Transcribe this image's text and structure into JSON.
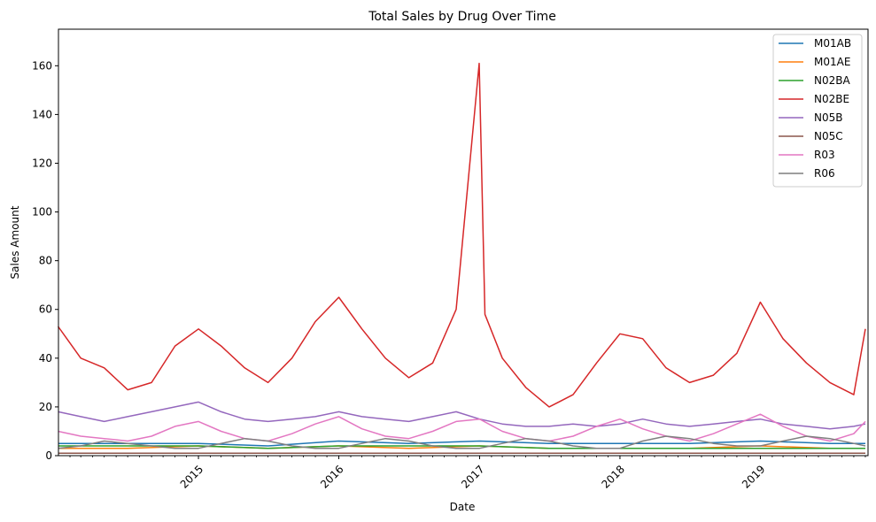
{
  "chart_data": {
    "type": "line",
    "title": "Total Sales by Drug Over Time",
    "xlabel": "Date",
    "ylabel": "Sales Amount",
    "xlim": [
      "2014-01-02",
      "2019-10-08"
    ],
    "ylim": [
      0,
      175
    ],
    "y_ticks": [
      0,
      20,
      40,
      60,
      80,
      100,
      120,
      140,
      160
    ],
    "x_ticks": [
      "2015-01-01",
      "2016-01-01",
      "2017-01-01",
      "2018-01-01",
      "2019-01-01"
    ],
    "x_tick_labels": [
      "2015",
      "2016",
      "2017",
      "2018",
      "2019"
    ],
    "grid": false,
    "legend_position": "top-right",
    "series": [
      {
        "name": "M01AB",
        "color": "#1f77b4",
        "x": [
          "2014-01",
          "2014-07",
          "2015-01",
          "2015-07",
          "2016-01",
          "2016-07",
          "2017-01",
          "2017-07",
          "2018-01",
          "2018-07",
          "2019-01",
          "2019-07",
          "2019-10"
        ],
        "y": [
          5,
          5,
          5,
          4,
          6,
          5,
          6,
          5,
          5,
          5,
          6,
          5,
          5
        ]
      },
      {
        "name": "M01AE",
        "color": "#ff7f0e",
        "x": [
          "2014-01",
          "2014-07",
          "2015-01",
          "2015-07",
          "2016-01",
          "2016-07",
          "2017-01",
          "2017-07",
          "2018-01",
          "2018-07",
          "2019-01",
          "2019-07",
          "2019-10"
        ],
        "y": [
          3,
          3,
          4,
          3,
          4,
          3,
          4,
          3,
          3,
          3,
          4,
          3,
          3
        ]
      },
      {
        "name": "N02BA",
        "color": "#2ca02c",
        "x": [
          "2014-01",
          "2014-07",
          "2015-01",
          "2015-07",
          "2016-01",
          "2016-07",
          "2017-01",
          "2017-07",
          "2018-01",
          "2018-07",
          "2019-01",
          "2019-07",
          "2019-10"
        ],
        "y": [
          4,
          4,
          4,
          3,
          4,
          4,
          4,
          3,
          3,
          3,
          3,
          3,
          3
        ]
      },
      {
        "name": "N02BE",
        "color": "#d62728",
        "x": [
          "2014-01",
          "2014-03",
          "2014-05",
          "2014-07",
          "2014-09",
          "2014-11",
          "2015-01",
          "2015-03",
          "2015-05",
          "2015-07",
          "2015-09",
          "2015-11",
          "2016-01",
          "2016-03",
          "2016-05",
          "2016-07",
          "2016-09",
          "2016-11",
          "2016-12-31",
          "2017-01-15",
          "2017-03",
          "2017-05",
          "2017-07",
          "2017-09",
          "2017-11",
          "2018-01",
          "2018-03",
          "2018-05",
          "2018-07",
          "2018-09",
          "2018-11",
          "2019-01",
          "2019-03",
          "2019-05",
          "2019-07",
          "2019-09",
          "2019-10"
        ],
        "y": [
          53,
          40,
          36,
          27,
          30,
          45,
          52,
          45,
          36,
          30,
          40,
          55,
          65,
          52,
          40,
          32,
          38,
          60,
          161,
          58,
          40,
          28,
          20,
          25,
          38,
          50,
          48,
          36,
          30,
          33,
          42,
          63,
          48,
          38,
          30,
          25,
          52
        ]
      },
      {
        "name": "N05B",
        "color": "#9467bd",
        "x": [
          "2014-01",
          "2014-03",
          "2014-05",
          "2014-07",
          "2014-09",
          "2014-11",
          "2015-01",
          "2015-03",
          "2015-05",
          "2015-07",
          "2015-09",
          "2015-11",
          "2016-01",
          "2016-03",
          "2016-05",
          "2016-07",
          "2016-09",
          "2016-11",
          "2017-01",
          "2017-03",
          "2017-05",
          "2017-07",
          "2017-09",
          "2017-11",
          "2018-01",
          "2018-03",
          "2018-05",
          "2018-07",
          "2018-09",
          "2018-11",
          "2019-01",
          "2019-03",
          "2019-05",
          "2019-07",
          "2019-09",
          "2019-10"
        ],
        "y": [
          18,
          16,
          14,
          16,
          18,
          20,
          22,
          18,
          15,
          14,
          15,
          16,
          18,
          16,
          15,
          14,
          16,
          18,
          15,
          13,
          12,
          12,
          13,
          12,
          13,
          15,
          13,
          12,
          13,
          14,
          15,
          13,
          12,
          11,
          12,
          13
        ]
      },
      {
        "name": "N05C",
        "color": "#8c564b",
        "x": [
          "2014-01",
          "2014-07",
          "2015-01",
          "2015-07",
          "2016-01",
          "2016-07",
          "2017-01",
          "2017-07",
          "2018-01",
          "2018-07",
          "2019-01",
          "2019-07",
          "2019-10"
        ],
        "y": [
          1,
          1,
          1,
          1,
          1,
          1,
          1,
          1,
          1,
          1,
          1,
          1,
          1
        ]
      },
      {
        "name": "R03",
        "color": "#e377c2",
        "x": [
          "2014-01",
          "2014-03",
          "2014-05",
          "2014-07",
          "2014-09",
          "2014-11",
          "2015-01",
          "2015-03",
          "2015-05",
          "2015-07",
          "2015-09",
          "2015-11",
          "2016-01",
          "2016-03",
          "2016-05",
          "2016-07",
          "2016-09",
          "2016-11",
          "2017-01",
          "2017-03",
          "2017-05",
          "2017-07",
          "2017-09",
          "2017-11",
          "2018-01",
          "2018-03",
          "2018-05",
          "2018-07",
          "2018-09",
          "2018-11",
          "2019-01",
          "2019-03",
          "2019-05",
          "2019-07",
          "2019-09",
          "2019-10"
        ],
        "y": [
          10,
          8,
          7,
          6,
          8,
          12,
          14,
          10,
          7,
          6,
          9,
          13,
          16,
          11,
          8,
          7,
          10,
          14,
          15,
          10,
          7,
          6,
          8,
          12,
          15,
          11,
          8,
          6,
          9,
          13,
          17,
          12,
          8,
          6,
          9,
          14
        ]
      },
      {
        "name": "R06",
        "color": "#7f7f7f",
        "x": [
          "2014-01",
          "2014-03",
          "2014-05",
          "2014-07",
          "2014-09",
          "2014-11",
          "2015-01",
          "2015-03",
          "2015-05",
          "2015-07",
          "2015-09",
          "2015-11",
          "2016-01",
          "2016-03",
          "2016-05",
          "2016-07",
          "2016-09",
          "2016-11",
          "2017-01",
          "2017-03",
          "2017-05",
          "2017-07",
          "2017-09",
          "2017-11",
          "2018-01",
          "2018-03",
          "2018-05",
          "2018-07",
          "2018-09",
          "2018-11",
          "2019-01",
          "2019-03",
          "2019-05",
          "2019-07",
          "2019-09",
          "2019-10"
        ],
        "y": [
          3,
          4,
          6,
          5,
          4,
          3,
          3,
          5,
          7,
          6,
          4,
          3,
          3,
          5,
          7,
          6,
          4,
          3,
          3,
          5,
          7,
          6,
          4,
          3,
          3,
          6,
          8,
          7,
          5,
          4,
          4,
          6,
          8,
          7,
          5,
          4
        ]
      }
    ]
  }
}
